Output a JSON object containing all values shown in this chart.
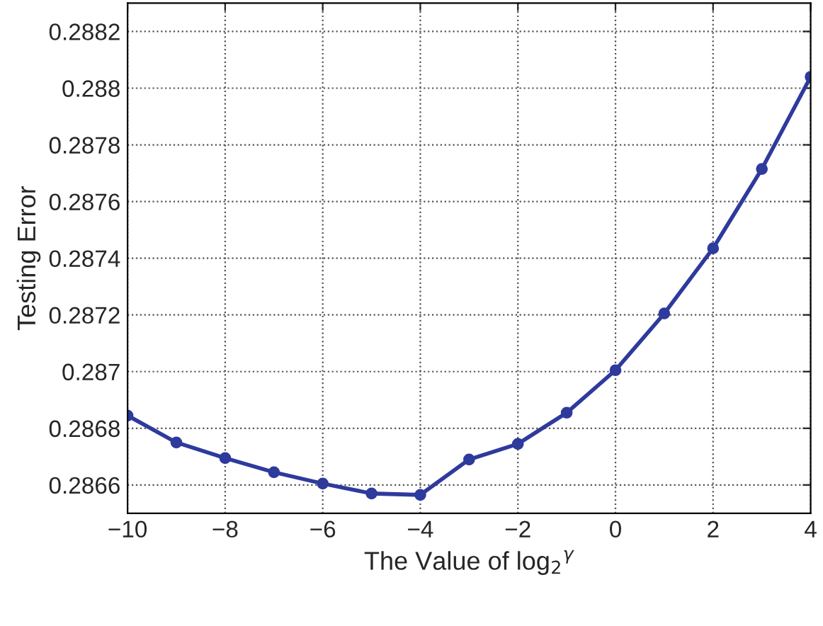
{
  "chart_data": {
    "type": "line",
    "xlabel": "The Value of log$_{2}$$^{γ}$",
    "ylabel": "Testing Error",
    "x": [
      -10,
      -9,
      -8,
      -7,
      -6,
      -5,
      -4,
      -3,
      -2,
      -1,
      0,
      1,
      2,
      3,
      4
    ],
    "series": [
      {
        "color": "#2e3a9c",
        "values": [
          0.286845,
          0.28675,
          0.286695,
          0.286645,
          0.286605,
          0.28657,
          0.286565,
          0.28669,
          0.286745,
          0.286855,
          0.287005,
          0.287205,
          0.287435,
          0.287715,
          0.28804
        ]
      }
    ],
    "xlim": [
      -10,
      4
    ],
    "xticks": [
      {
        "value": -10,
        "label": "−10"
      },
      {
        "value": -8,
        "label": "−8"
      },
      {
        "value": -6,
        "label": "−6"
      },
      {
        "value": -4,
        "label": "−4"
      },
      {
        "value": -2,
        "label": "−2"
      },
      0,
      2,
      4
    ],
    "ylim": [
      0.2865,
      0.2883
    ],
    "yticks": [
      0.2866,
      0.2868,
      0.287,
      0.2872,
      0.2874,
      0.2876,
      0.2878,
      0.288,
      0.2882
    ],
    "grid": true,
    "marker": "circle",
    "line_style": "solid"
  }
}
